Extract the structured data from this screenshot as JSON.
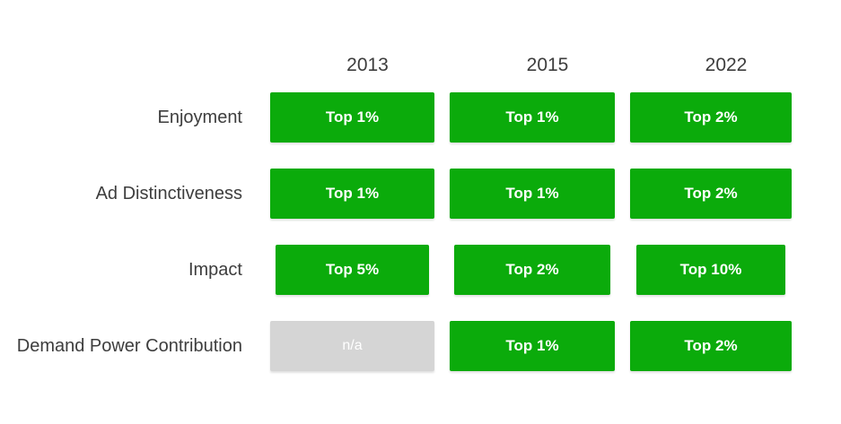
{
  "chart_data": {
    "type": "table",
    "title": "",
    "columns": [
      "2013",
      "2015",
      "2022"
    ],
    "rows": [
      "Enjoyment",
      "Ad Distinctiveness",
      "Impact",
      "Demand Power Contribution"
    ],
    "values": [
      [
        "Top 1%",
        "Top 1%",
        "Top 2%"
      ],
      [
        "Top 1%",
        "Top 1%",
        "Top 2%"
      ],
      [
        "Top 5%",
        "Top 2%",
        "Top 10%"
      ],
      [
        "n/a",
        "Top 1%",
        "Top 2%"
      ]
    ],
    "cell_status": [
      [
        "positive",
        "positive",
        "positive"
      ],
      [
        "positive",
        "positive",
        "positive"
      ],
      [
        "positive",
        "positive",
        "positive"
      ],
      [
        "na",
        "positive",
        "positive"
      ]
    ],
    "legend_position": "none",
    "grid": false
  },
  "colors": {
    "positive_green": "#0bab0b",
    "na_gray": "#d5d5d5",
    "cell_text": "#ffffff",
    "label_text": "#3d3d3d",
    "background": "#ffffff"
  }
}
